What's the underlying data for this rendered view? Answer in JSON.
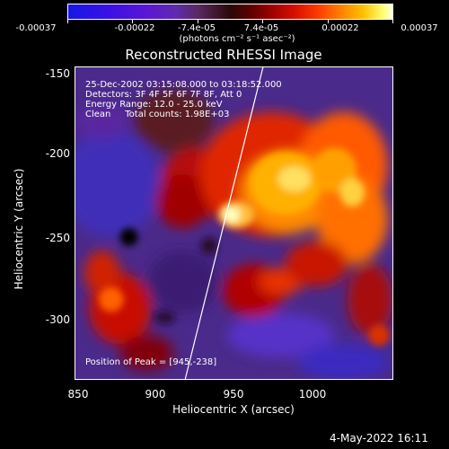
{
  "colorbar": {
    "labels": [
      "-0.00037",
      "-0.00022",
      "-7.4e-05",
      "7.4e-05",
      "0.00022",
      "0.00037"
    ],
    "unit": "(photons cm⁻² s⁻¹ asec⁻²)",
    "colors": [
      "#1717e8",
      "#5a16d6",
      "#5a2a60",
      "#2a0808",
      "#a00000",
      "#ff3a00",
      "#ffc000",
      "#ffffe0"
    ]
  },
  "title": "Reconstructed RHESSI Image",
  "annotations": {
    "time": "25-Dec-2002 03:15:08.000 to 03:18:52.000",
    "detectors": "Detectors: 3F 4F 5F 6F 7F 8F, Att 0",
    "energy": "Energy Range: 12.0 - 25.0 keV",
    "clean": "Clean     Total counts: 1.98E+03",
    "peak": "Position of Peak = [945,-238]"
  },
  "axes": {
    "xlabel": "Heliocentric X (arcsec)",
    "ylabel": "Heliocentric Y (arcsec)",
    "xticks": [
      "850",
      "900",
      "950",
      "1000"
    ],
    "yticks": [
      "-150",
      "-200",
      "-250",
      "-300"
    ]
  },
  "date": "4-May-2022 16:11"
}
